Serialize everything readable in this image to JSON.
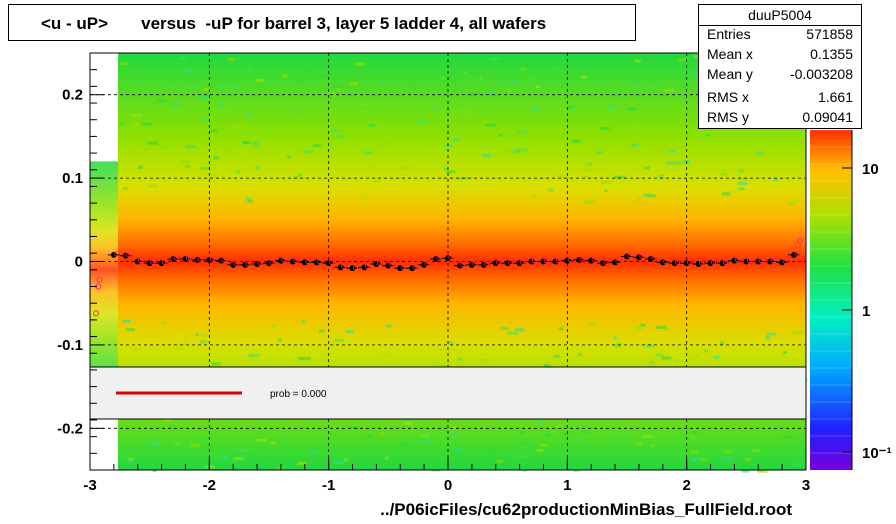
{
  "title": "<u - uP>       versus  -uP for barrel 3, layer 5 ladder 4, all wafers",
  "stats": {
    "name": "duuP5004",
    "rows": [
      {
        "label": "Entries",
        "value": "571858"
      },
      {
        "label": "Mean x",
        "value": "0.1355"
      },
      {
        "label": "Mean y",
        "value": "-0.003208"
      },
      {
        "label": "RMS x",
        "value": "1.661"
      },
      {
        "label": "RMS y",
        "value": "0.09041"
      }
    ]
  },
  "fit_label": "prob = 0.000",
  "colors": {
    "fit_line": "#e00000",
    "profile_points": "#000000",
    "open_markers": "#ff2a6a",
    "band_fill": "#f0f0f0"
  },
  "chart_data": {
    "type": "heatmap",
    "xlabel": "../P06icFiles/cu62productionMinBias_FullField.root",
    "xlim": [
      -3,
      3
    ],
    "ylim": [
      -0.25,
      0.25
    ],
    "x_ticks": [
      "-3",
      "-2",
      "-1",
      "0",
      "1",
      "2",
      "3"
    ],
    "y_ticks": [
      "0.2",
      "0.1",
      "0",
      "-0.1",
      "-0.2"
    ],
    "colorbar_ticks": [
      "10",
      "1",
      "10⁻¹"
    ],
    "grid": true,
    "profile": {
      "x": [
        -2.8,
        -2.7,
        -2.6,
        -2.5,
        -2.4,
        -2.3,
        -2.2,
        -2.1,
        -2.0,
        -1.9,
        -1.8,
        -1.7,
        -1.6,
        -1.5,
        -1.4,
        -1.3,
        -1.2,
        -1.1,
        -1.0,
        -0.9,
        -0.8,
        -0.7,
        -0.6,
        -0.5,
        -0.4,
        -0.3,
        -0.2,
        -0.1,
        0.0,
        0.1,
        0.2,
        0.3,
        0.4,
        0.5,
        0.6,
        0.7,
        0.8,
        0.9,
        1.0,
        1.1,
        1.2,
        1.3,
        1.4,
        1.5,
        1.6,
        1.7,
        1.8,
        1.9,
        2.0,
        2.1,
        2.2,
        2.3,
        2.4,
        2.5,
        2.6,
        2.7,
        2.8,
        2.9
      ],
      "y": [
        0.008,
        0.007,
        0.0,
        -0.002,
        -0.002,
        0.003,
        0.003,
        0.002,
        0.002,
        0.001,
        -0.004,
        -0.004,
        -0.003,
        -0.002,
        0.001,
        0.0,
        -0.001,
        -0.001,
        -0.002,
        -0.007,
        -0.008,
        -0.007,
        -0.003,
        -0.005,
        -0.008,
        -0.008,
        -0.004,
        0.003,
        0.004,
        -0.005,
        -0.004,
        -0.004,
        -0.002,
        -0.002,
        -0.002,
        0.0,
        0.0,
        0.0,
        0.001,
        0.002,
        0.001,
        -0.002,
        -0.001,
        0.006,
        0.005,
        0.003,
        -0.001,
        -0.002,
        -0.002,
        -0.003,
        -0.002,
        -0.002,
        0.001,
        0.0,
        0.0,
        0.0,
        -0.001,
        0.008
      ]
    },
    "edge_markers": [
      {
        "x": -2.95,
        "y": -0.062
      },
      {
        "x": -2.93,
        "y": -0.03
      },
      {
        "x": -2.92,
        "y": -0.022
      },
      {
        "x": 2.93,
        "y": 0.02
      },
      {
        "x": 2.95,
        "y": 0.025
      }
    ]
  }
}
